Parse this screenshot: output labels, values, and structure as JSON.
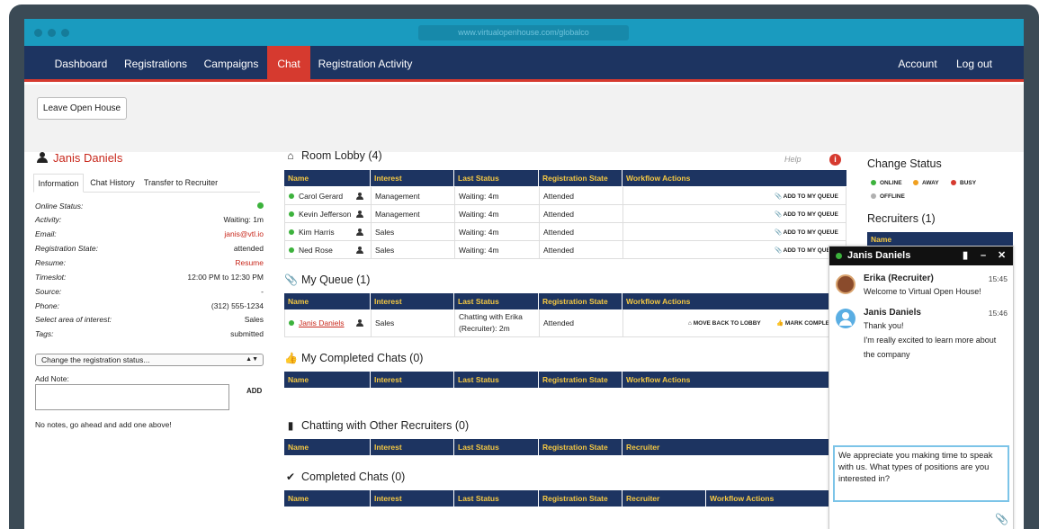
{
  "browser": {
    "url": "www.virtualopenhouse.com/globalco"
  },
  "nav": {
    "items": [
      "Dashboard",
      "Registrations",
      "Campaigns",
      "Chat",
      "Registration Activity"
    ],
    "account": "Account",
    "logout": "Log out",
    "active": "Chat"
  },
  "toolbar": {
    "leave": "Leave Open House"
  },
  "person": {
    "name": "Janis Daniels",
    "tabs": [
      "Information",
      "Chat History",
      "Transfer to Recruiter"
    ],
    "fields": [
      {
        "k": "Online Status:",
        "v": ""
      },
      {
        "k": "Activity:",
        "v": "Waiting: 1m"
      },
      {
        "k": "Email:",
        "v": "janis@vtl.io"
      },
      {
        "k": "Registration State:",
        "v": "attended"
      },
      {
        "k": "Resume:",
        "v": "Resume"
      },
      {
        "k": "Timeslot:",
        "v": "12:00 PM to 12:30 PM"
      },
      {
        "k": "Source:",
        "v": "-"
      },
      {
        "k": "Phone:",
        "v": "(312) 555-1234"
      },
      {
        "k": "Select area of interest:",
        "v": "Sales"
      },
      {
        "k": "Tags:",
        "v": "submitted"
      }
    ],
    "status_select": "Change the registration status...",
    "add_note_label": "Add Note:",
    "add_button": "ADD",
    "no_notes": "No notes, go ahead and add one above!"
  },
  "lobby": {
    "title": "Room Lobby (4)",
    "help": "Help",
    "columns": [
      "Name",
      "Interest",
      "Last Status",
      "Registration State",
      "Workflow Actions"
    ],
    "rows": [
      {
        "name": "Carol Gerard",
        "interest": "Management",
        "status": "Waiting: 4m",
        "state": "Attended",
        "action": "ADD TO MY QUEUE"
      },
      {
        "name": "Kevin Jefferson",
        "interest": "Management",
        "status": "Waiting: 4m",
        "state": "Attended",
        "action": "ADD TO MY QUEUE"
      },
      {
        "name": "Kim Harris",
        "interest": "Sales",
        "status": "Waiting: 4m",
        "state": "Attended",
        "action": "ADD TO MY QUEUE"
      },
      {
        "name": "Ned Rose",
        "interest": "Sales",
        "status": "Waiting: 4m",
        "state": "Attended",
        "action": "ADD TO MY QUEUE"
      }
    ]
  },
  "queue": {
    "title": "My Queue (1)",
    "columns": [
      "Name",
      "Interest",
      "Last Status",
      "Registration State",
      "Workflow Actions"
    ],
    "row": {
      "name": "Janis Daniels",
      "interest": "Sales",
      "status_line1": "Chatting with Erika",
      "status_line2": "(Recruiter): 2m",
      "state": "Attended",
      "action1": "MOVE BACK TO LOBBY",
      "action2": "MARK COMPLETE"
    }
  },
  "completed_mine": {
    "title": "My Completed Chats (0)",
    "columns": [
      "Name",
      "Interest",
      "Last Status",
      "Registration State",
      "Workflow Actions"
    ]
  },
  "other_recruiters": {
    "title": "Chatting with Other Recruiters (0)",
    "columns": [
      "Name",
      "Interest",
      "Last Status",
      "Registration State",
      "Recruiter"
    ]
  },
  "completed": {
    "title": "Completed Chats (0)",
    "columns": [
      "Name",
      "Interest",
      "Last Status",
      "Registration State",
      "Recruiter",
      "Workflow Actions"
    ]
  },
  "status_panel": {
    "title": "Change Status",
    "options": [
      {
        "label": "ONLINE",
        "color": "#3cb23c"
      },
      {
        "label": "AWAY",
        "color": "#f0a020"
      },
      {
        "label": "BUSY",
        "color": "#d63a2f"
      },
      {
        "label": "OFFLINE",
        "color": "#b0b0b0"
      }
    ],
    "recruiters_title": "Recruiters (1)",
    "recruiters_col": "Name"
  },
  "chat": {
    "title": "Janis Daniels",
    "messages": [
      {
        "name": "Erika (Recruiter)",
        "time": "15:45",
        "lines": [
          "Welcome to Virtual Open House!"
        ]
      },
      {
        "name": "Janis Daniels",
        "time": "15:46",
        "lines": [
          "Thank you!",
          "I'm really excited to learn more about the company"
        ]
      }
    ],
    "input": "We appreciate you making time to speak with us. What types of positions are you interested in?"
  },
  "colors": {
    "navy": "#1d3461",
    "accent": "#d63a2f",
    "header_text": "#f5c842",
    "titlebar": "#1a9bbf"
  }
}
